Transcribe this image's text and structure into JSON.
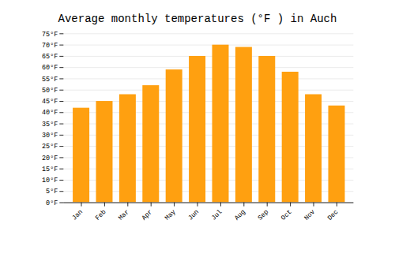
{
  "chart_data": {
    "type": "bar",
    "title": "Average monthly temperatures (°F ) in Auch",
    "categories": [
      "Jan",
      "Feb",
      "Mar",
      "Apr",
      "May",
      "Jun",
      "Jul",
      "Aug",
      "Sep",
      "Oct",
      "Nov",
      "Dec"
    ],
    "values": [
      42,
      45,
      48,
      52,
      59,
      65,
      70,
      69,
      65,
      58,
      48,
      43
    ],
    "color": "#FFA010",
    "ylim": [
      0,
      75
    ],
    "yticks": [
      {
        "value": 0,
        "label": "0°F"
      },
      {
        "value": 5,
        "label": "5°F"
      },
      {
        "value": 10,
        "label": "10°F"
      },
      {
        "value": 15,
        "label": "15°F"
      },
      {
        "value": 20,
        "label": "20°F"
      },
      {
        "value": 25,
        "label": "25°F"
      },
      {
        "value": 30,
        "label": "30°F"
      },
      {
        "value": 35,
        "label": "35°F"
      },
      {
        "value": 40,
        "label": "40°F"
      },
      {
        "value": 45,
        "label": "45°F"
      },
      {
        "value": 50,
        "label": "50°F"
      },
      {
        "value": 55,
        "label": "55°F"
      },
      {
        "value": 60,
        "label": "60°F"
      },
      {
        "value": 65,
        "label": "65°F"
      },
      {
        "value": 70,
        "label": "70°F"
      },
      {
        "value": 75,
        "label": "75°F"
      }
    ],
    "grid": true
  }
}
